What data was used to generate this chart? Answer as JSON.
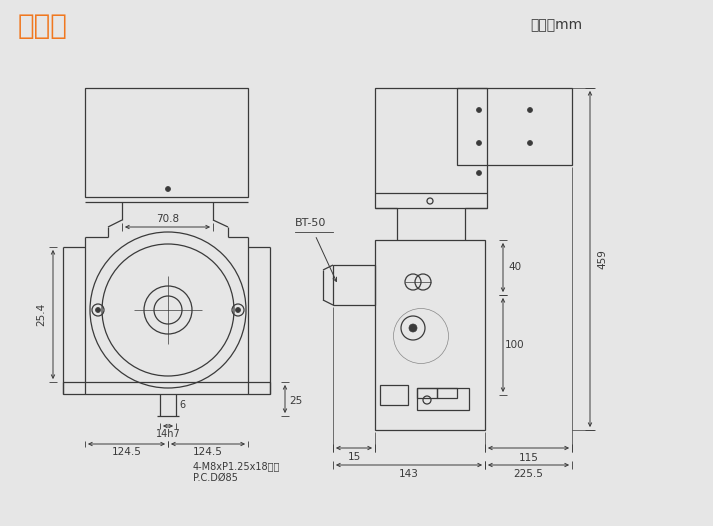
{
  "bg_color": "#e6e6e6",
  "line_color": "#3a3a3a",
  "title": "尺寸圖",
  "title_color": "#f07820",
  "unit_text": "單位：mm",
  "d_70_8": "70.8",
  "d_25_4": "25.4",
  "d_25": "25",
  "d_14h7": "14h7",
  "d_124_5L": "124.5",
  "d_124_5R": "124.5",
  "d_note1": "4-M8xP1.25x18深，",
  "d_note2": "P.C.DØ85",
  "d_BT50": "BT-50",
  "d_15": "15",
  "d_40": "40",
  "d_100": "100",
  "d_115": "115",
  "d_143": "143",
  "d_225_5": "225.5",
  "d_459": "459",
  "d_6": "6"
}
